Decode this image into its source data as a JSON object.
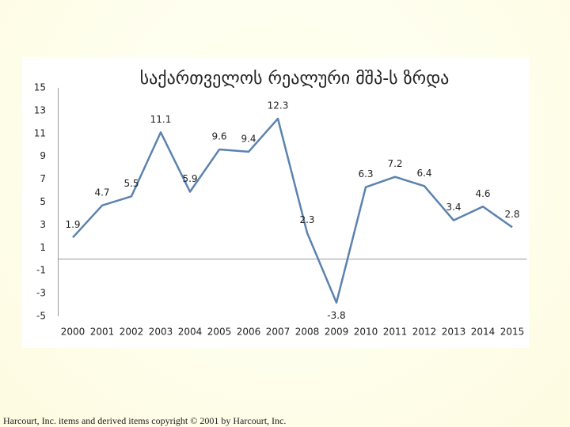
{
  "chart_data": {
    "type": "line",
    "title": "საქართველოს რეალური მშპ-ს ზრდა",
    "categories": [
      "2000",
      "2001",
      "2002",
      "2003",
      "2004",
      "2005",
      "2006",
      "2007",
      "2008",
      "2009",
      "2010",
      "2011",
      "2012",
      "2013",
      "2014",
      "2015"
    ],
    "series": [
      {
        "color": "#5b82b0",
        "values": [
          1.9,
          4.7,
          5.5,
          11.1,
          5.9,
          9.6,
          9.4,
          12.3,
          2.3,
          -3.8,
          6.3,
          7.2,
          6.4,
          3.4,
          4.6,
          2.8
        ]
      }
    ],
    "ylim": [
      -5,
      15
    ],
    "yticks": [
      15,
      13,
      11,
      9,
      7,
      5,
      3,
      1,
      -1,
      -3,
      -5
    ],
    "grid": false
  },
  "footer": "Harcourt, Inc. items and derived items copyright © 2001 by Harcourt, Inc."
}
